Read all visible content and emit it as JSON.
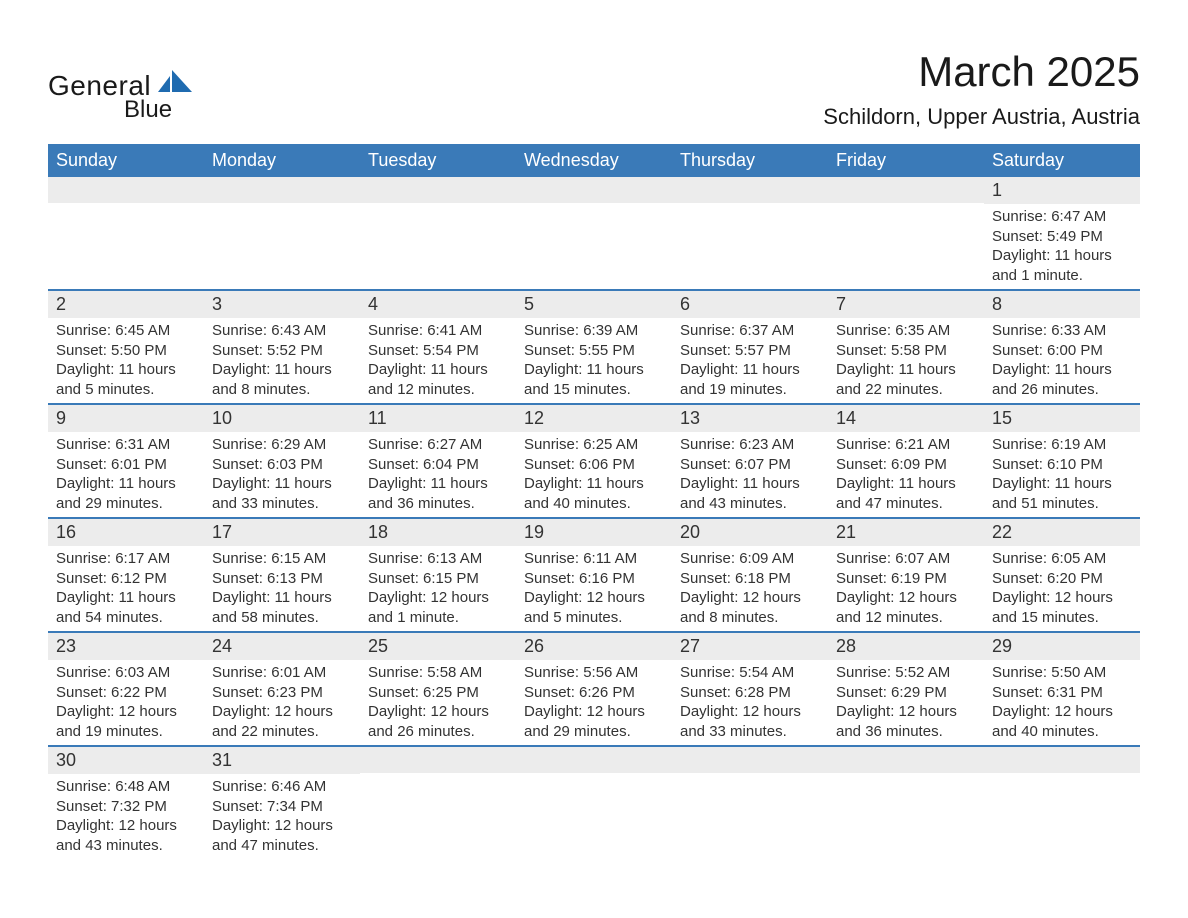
{
  "brand": {
    "part1": "General",
    "part2": "Blue",
    "color_dark": "#1a1a1a",
    "color_accent": "#1f6bb0"
  },
  "title": "March 2025",
  "location": "Schildorn, Upper Austria, Austria",
  "calendar": {
    "header_bg": "#3a7ab8",
    "header_fg": "#ffffff",
    "row_separator_color": "#3a7ab8",
    "daynum_bg": "#ececec",
    "text_color": "#333333",
    "font_family": "Arial",
    "columns": [
      "Sunday",
      "Monday",
      "Tuesday",
      "Wednesday",
      "Thursday",
      "Friday",
      "Saturday"
    ],
    "weeks": [
      [
        {
          "day": "",
          "sunrise": "",
          "sunset": "",
          "daylight": ""
        },
        {
          "day": "",
          "sunrise": "",
          "sunset": "",
          "daylight": ""
        },
        {
          "day": "",
          "sunrise": "",
          "sunset": "",
          "daylight": ""
        },
        {
          "day": "",
          "sunrise": "",
          "sunset": "",
          "daylight": ""
        },
        {
          "day": "",
          "sunrise": "",
          "sunset": "",
          "daylight": ""
        },
        {
          "day": "",
          "sunrise": "",
          "sunset": "",
          "daylight": ""
        },
        {
          "day": "1",
          "sunrise": "Sunrise: 6:47 AM",
          "sunset": "Sunset: 5:49 PM",
          "daylight": "Daylight: 11 hours and 1 minute."
        }
      ],
      [
        {
          "day": "2",
          "sunrise": "Sunrise: 6:45 AM",
          "sunset": "Sunset: 5:50 PM",
          "daylight": "Daylight: 11 hours and 5 minutes."
        },
        {
          "day": "3",
          "sunrise": "Sunrise: 6:43 AM",
          "sunset": "Sunset: 5:52 PM",
          "daylight": "Daylight: 11 hours and 8 minutes."
        },
        {
          "day": "4",
          "sunrise": "Sunrise: 6:41 AM",
          "sunset": "Sunset: 5:54 PM",
          "daylight": "Daylight: 11 hours and 12 minutes."
        },
        {
          "day": "5",
          "sunrise": "Sunrise: 6:39 AM",
          "sunset": "Sunset: 5:55 PM",
          "daylight": "Daylight: 11 hours and 15 minutes."
        },
        {
          "day": "6",
          "sunrise": "Sunrise: 6:37 AM",
          "sunset": "Sunset: 5:57 PM",
          "daylight": "Daylight: 11 hours and 19 minutes."
        },
        {
          "day": "7",
          "sunrise": "Sunrise: 6:35 AM",
          "sunset": "Sunset: 5:58 PM",
          "daylight": "Daylight: 11 hours and 22 minutes."
        },
        {
          "day": "8",
          "sunrise": "Sunrise: 6:33 AM",
          "sunset": "Sunset: 6:00 PM",
          "daylight": "Daylight: 11 hours and 26 minutes."
        }
      ],
      [
        {
          "day": "9",
          "sunrise": "Sunrise: 6:31 AM",
          "sunset": "Sunset: 6:01 PM",
          "daylight": "Daylight: 11 hours and 29 minutes."
        },
        {
          "day": "10",
          "sunrise": "Sunrise: 6:29 AM",
          "sunset": "Sunset: 6:03 PM",
          "daylight": "Daylight: 11 hours and 33 minutes."
        },
        {
          "day": "11",
          "sunrise": "Sunrise: 6:27 AM",
          "sunset": "Sunset: 6:04 PM",
          "daylight": "Daylight: 11 hours and 36 minutes."
        },
        {
          "day": "12",
          "sunrise": "Sunrise: 6:25 AM",
          "sunset": "Sunset: 6:06 PM",
          "daylight": "Daylight: 11 hours and 40 minutes."
        },
        {
          "day": "13",
          "sunrise": "Sunrise: 6:23 AM",
          "sunset": "Sunset: 6:07 PM",
          "daylight": "Daylight: 11 hours and 43 minutes."
        },
        {
          "day": "14",
          "sunrise": "Sunrise: 6:21 AM",
          "sunset": "Sunset: 6:09 PM",
          "daylight": "Daylight: 11 hours and 47 minutes."
        },
        {
          "day": "15",
          "sunrise": "Sunrise: 6:19 AM",
          "sunset": "Sunset: 6:10 PM",
          "daylight": "Daylight: 11 hours and 51 minutes."
        }
      ],
      [
        {
          "day": "16",
          "sunrise": "Sunrise: 6:17 AM",
          "sunset": "Sunset: 6:12 PM",
          "daylight": "Daylight: 11 hours and 54 minutes."
        },
        {
          "day": "17",
          "sunrise": "Sunrise: 6:15 AM",
          "sunset": "Sunset: 6:13 PM",
          "daylight": "Daylight: 11 hours and 58 minutes."
        },
        {
          "day": "18",
          "sunrise": "Sunrise: 6:13 AM",
          "sunset": "Sunset: 6:15 PM",
          "daylight": "Daylight: 12 hours and 1 minute."
        },
        {
          "day": "19",
          "sunrise": "Sunrise: 6:11 AM",
          "sunset": "Sunset: 6:16 PM",
          "daylight": "Daylight: 12 hours and 5 minutes."
        },
        {
          "day": "20",
          "sunrise": "Sunrise: 6:09 AM",
          "sunset": "Sunset: 6:18 PM",
          "daylight": "Daylight: 12 hours and 8 minutes."
        },
        {
          "day": "21",
          "sunrise": "Sunrise: 6:07 AM",
          "sunset": "Sunset: 6:19 PM",
          "daylight": "Daylight: 12 hours and 12 minutes."
        },
        {
          "day": "22",
          "sunrise": "Sunrise: 6:05 AM",
          "sunset": "Sunset: 6:20 PM",
          "daylight": "Daylight: 12 hours and 15 minutes."
        }
      ],
      [
        {
          "day": "23",
          "sunrise": "Sunrise: 6:03 AM",
          "sunset": "Sunset: 6:22 PM",
          "daylight": "Daylight: 12 hours and 19 minutes."
        },
        {
          "day": "24",
          "sunrise": "Sunrise: 6:01 AM",
          "sunset": "Sunset: 6:23 PM",
          "daylight": "Daylight: 12 hours and 22 minutes."
        },
        {
          "day": "25",
          "sunrise": "Sunrise: 5:58 AM",
          "sunset": "Sunset: 6:25 PM",
          "daylight": "Daylight: 12 hours and 26 minutes."
        },
        {
          "day": "26",
          "sunrise": "Sunrise: 5:56 AM",
          "sunset": "Sunset: 6:26 PM",
          "daylight": "Daylight: 12 hours and 29 minutes."
        },
        {
          "day": "27",
          "sunrise": "Sunrise: 5:54 AM",
          "sunset": "Sunset: 6:28 PM",
          "daylight": "Daylight: 12 hours and 33 minutes."
        },
        {
          "day": "28",
          "sunrise": "Sunrise: 5:52 AM",
          "sunset": "Sunset: 6:29 PM",
          "daylight": "Daylight: 12 hours and 36 minutes."
        },
        {
          "day": "29",
          "sunrise": "Sunrise: 5:50 AM",
          "sunset": "Sunset: 6:31 PM",
          "daylight": "Daylight: 12 hours and 40 minutes."
        }
      ],
      [
        {
          "day": "30",
          "sunrise": "Sunrise: 6:48 AM",
          "sunset": "Sunset: 7:32 PM",
          "daylight": "Daylight: 12 hours and 43 minutes."
        },
        {
          "day": "31",
          "sunrise": "Sunrise: 6:46 AM",
          "sunset": "Sunset: 7:34 PM",
          "daylight": "Daylight: 12 hours and 47 minutes."
        },
        {
          "day": "",
          "sunrise": "",
          "sunset": "",
          "daylight": ""
        },
        {
          "day": "",
          "sunrise": "",
          "sunset": "",
          "daylight": ""
        },
        {
          "day": "",
          "sunrise": "",
          "sunset": "",
          "daylight": ""
        },
        {
          "day": "",
          "sunrise": "",
          "sunset": "",
          "daylight": ""
        },
        {
          "day": "",
          "sunrise": "",
          "sunset": "",
          "daylight": ""
        }
      ]
    ]
  }
}
